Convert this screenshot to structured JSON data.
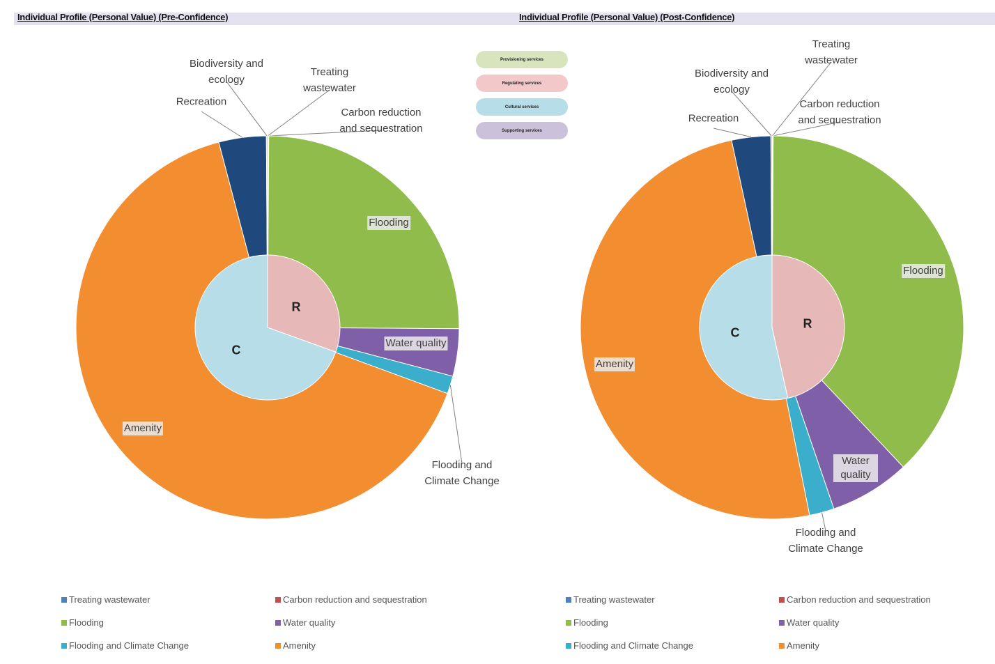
{
  "chart_data": [
    {
      "type": "pie",
      "title": "Individual Profile (Personal Value) (Pre-Confidence)",
      "categories": [
        "Treating wastewater",
        "Carbon reduction and sequestration",
        "Flooding",
        "Water quality",
        "Flooding and Climate Change",
        "Amenity",
        "Recreation",
        "Biodiversity and ecology"
      ],
      "values": [
        0.05,
        0.05,
        25,
        4,
        1.5,
        65.3,
        4,
        0.1
      ],
      "colors": [
        "#4f81bd",
        "#c0504d",
        "#8fbc4a",
        "#7f5fa8",
        "#3aaecb",
        "#f28d30",
        "#1f497d",
        "#a5a5a5"
      ],
      "inner_categories": [
        "R",
        "C"
      ],
      "inner_values": [
        30.5,
        69.5
      ],
      "inner_colors": [
        "#e6b8b7",
        "#b7dde8"
      ],
      "legend": [
        "Treating wastewater",
        "Carbon reduction and sequestration",
        "Flooding",
        "Water quality",
        "Flooding and Climate Change",
        "Amenity"
      ]
    },
    {
      "type": "pie",
      "title": "Individual Profile (Personal Value) (Post-Confidence)",
      "categories": [
        "Treating wastewater",
        "Carbon reduction and sequestration",
        "Flooding",
        "Water quality",
        "Flooding and Climate Change",
        "Amenity",
        "Recreation",
        "Biodiversity and ecology"
      ],
      "values": [
        0.05,
        0.05,
        38,
        6.8,
        2.1,
        49.9,
        3.3,
        0.1
      ],
      "colors": [
        "#4f81bd",
        "#c0504d",
        "#8fbc4a",
        "#7f5fa8",
        "#3aaecb",
        "#f28d30",
        "#1f497d",
        "#a5a5a5"
      ],
      "inner_categories": [
        "R",
        "C"
      ],
      "inner_values": [
        46.5,
        53.5
      ],
      "inner_colors": [
        "#e6b8b7",
        "#b7dde8"
      ],
      "legend": [
        "Treating wastewater",
        "Carbon reduction and sequestration",
        "Flooding",
        "Water quality",
        "Flooding and Climate Change",
        "Amenity"
      ]
    }
  ],
  "service_legend": [
    {
      "label": "Provisioning services",
      "color": "#d7e4bd"
    },
    {
      "label": "Regulating services",
      "color": "#f2c9c8"
    },
    {
      "label": "Cultural services",
      "color": "#b7dde8"
    },
    {
      "label": "Supporting services",
      "color": "#ccc1da"
    }
  ]
}
